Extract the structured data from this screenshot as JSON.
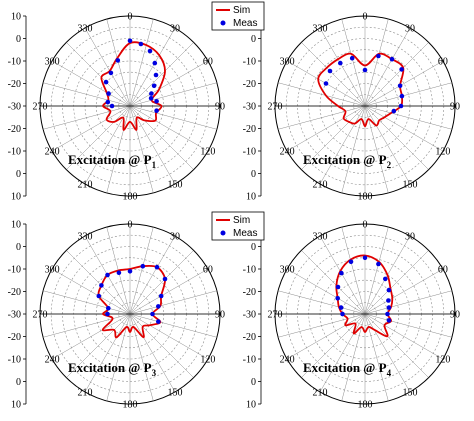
{
  "colors": {
    "sim": "#e00000",
    "meas": "#0000e0",
    "grid": "#8c8c8c",
    "axis": "#000000"
  },
  "legends": [
    {
      "sim_label": "Sim",
      "meas_label": "Meas"
    },
    {
      "sim_label": "Sim",
      "meas_label": "Meas"
    }
  ],
  "chart_data": [
    {
      "type": "polar",
      "caption_main": "Excitation @ P",
      "caption_sub": "1",
      "angular_ticks": [
        "0",
        "30",
        "60",
        "90",
        "120",
        "150",
        "180",
        "210",
        "240",
        "270",
        "300",
        "330"
      ],
      "radial_ticks": [
        "10",
        "0",
        "-10",
        "-20",
        "-30",
        "-20",
        "-10",
        "0",
        "10"
      ],
      "rlim": [
        -30,
        10
      ],
      "sim": {
        "name": "Sim",
        "theta": [
          0,
          15,
          30,
          45,
          60,
          75,
          90,
          105,
          120,
          135,
          150,
          165,
          180,
          195,
          210,
          225,
          240,
          255,
          270,
          285,
          300,
          315,
          330,
          345
        ],
        "r": [
          -2,
          -2,
          -4,
          -8,
          -15,
          -20,
          -16,
          -18,
          -17,
          -21,
          -24,
          -19,
          -23,
          -19,
          -24,
          -20,
          -18,
          -21,
          -18,
          -20,
          -18,
          -12,
          -12,
          -8
        ]
      },
      "meas": {
        "name": "Meas",
        "theta": [
          0,
          10,
          20,
          30,
          40,
          50,
          60,
          70,
          80,
          100,
          270,
          280,
          300,
          315,
          330,
          345
        ],
        "r": [
          -1,
          -2,
          -4,
          -8,
          -12,
          -16,
          -19,
          -20,
          -18,
          -18,
          -22,
          -20,
          -19,
          -15,
          -13,
          -9
        ]
      }
    },
    {
      "type": "polar",
      "caption_main": "Excitation @ P",
      "caption_sub": "2",
      "angular_ticks": [
        "0",
        "30",
        "60",
        "90",
        "120",
        "150",
        "180",
        "210",
        "240",
        "270",
        "300",
        "330"
      ],
      "radial_ticks": [
        "10",
        "0",
        "-10",
        "-20",
        "-30",
        "-20",
        "-10",
        "0",
        "10"
      ],
      "rlim": [
        -30,
        10
      ],
      "sim": {
        "name": "Sim",
        "theta": [
          0,
          15,
          30,
          45,
          60,
          75,
          90,
          105,
          120,
          135,
          150,
          165,
          180,
          195,
          210,
          225,
          240,
          255,
          270,
          285,
          300,
          315,
          330,
          345
        ],
        "r": [
          -12,
          -6,
          -6,
          -6,
          -12,
          -13,
          -14,
          -18,
          -20,
          -21,
          -20,
          -24,
          -21,
          -24,
          -21,
          -20,
          -19,
          -21,
          -18,
          -12,
          -6,
          -6,
          -6,
          -6
        ]
      },
      "meas": {
        "name": "Meas",
        "theta": [
          0,
          15,
          30,
          45,
          60,
          75,
          90,
          100,
          300,
          315,
          330,
          345
        ],
        "r": [
          -14,
          -7,
          -6,
          -7,
          -12,
          -13,
          -14,
          -17,
          -10,
          -8,
          -8,
          -8
        ]
      }
    },
    {
      "type": "polar",
      "caption_main": "Excitation @ P",
      "caption_sub": "3",
      "angular_ticks": [
        "0",
        "30",
        "60",
        "90",
        "120",
        "150",
        "180",
        "210",
        "240",
        "270",
        "300",
        "330"
      ],
      "radial_ticks": [
        "10",
        "0",
        "-10",
        "-20",
        "-30",
        "-20",
        "-10",
        "0",
        "10"
      ],
      "rlim": [
        -30,
        10
      ],
      "sim": {
        "name": "Sim",
        "theta": [
          0,
          15,
          30,
          45,
          60,
          75,
          90,
          105,
          120,
          135,
          150,
          165,
          180,
          195,
          210,
          225,
          240,
          255,
          270,
          285,
          300,
          315,
          330,
          345
        ],
        "r": [
          -10,
          -8,
          -6,
          -8,
          -14,
          -16,
          -20,
          -16,
          -20,
          -22,
          -18,
          -24,
          -22,
          -24,
          -18,
          -20,
          -16,
          -22,
          -18,
          -20,
          -14,
          -12,
          -10,
          -10
        ]
      },
      "meas": {
        "name": "Meas",
        "theta": [
          0,
          15,
          30,
          45,
          60,
          75,
          90,
          105,
          270,
          285,
          300,
          315,
          330,
          345
        ],
        "r": [
          -11,
          -8,
          -6,
          -8,
          -14,
          -17,
          -20,
          -17,
          -20,
          -20,
          -14,
          -12,
          -10,
          -11
        ]
      }
    },
    {
      "type": "polar",
      "caption_main": "Excitation @ P",
      "caption_sub": "4",
      "angular_ticks": [
        "0",
        "30",
        "60",
        "90",
        "120",
        "150",
        "180",
        "210",
        "240",
        "270",
        "300",
        "330"
      ],
      "radial_ticks": [
        "10",
        "0",
        "-10",
        "-20",
        "-30",
        "-20",
        "-10",
        "0",
        "10"
      ],
      "rlim": [
        -30,
        10
      ],
      "sim": {
        "name": "Sim",
        "theta": [
          0,
          15,
          30,
          45,
          60,
          75,
          90,
          105,
          120,
          135,
          150,
          165,
          180,
          195,
          210,
          225,
          240,
          255,
          270,
          285,
          300,
          315,
          330,
          345
        ],
        "r": [
          -4,
          -6,
          -10,
          -14,
          -16,
          -18,
          -20,
          -18,
          -20,
          -16,
          -22,
          -24,
          -22,
          -24,
          -20,
          -24,
          -20,
          -22,
          -20,
          -18,
          -16,
          -12,
          -8,
          -5
        ]
      },
      "meas": {
        "name": "Meas",
        "theta": [
          0,
          15,
          30,
          45,
          60,
          75,
          90,
          105,
          270,
          285,
          300,
          315,
          330,
          345
        ],
        "r": [
          -5,
          -7,
          -12,
          -15,
          -18,
          -19,
          -20,
          -19,
          -20,
          -19,
          -16,
          -13,
          -9,
          -6
        ]
      }
    }
  ]
}
